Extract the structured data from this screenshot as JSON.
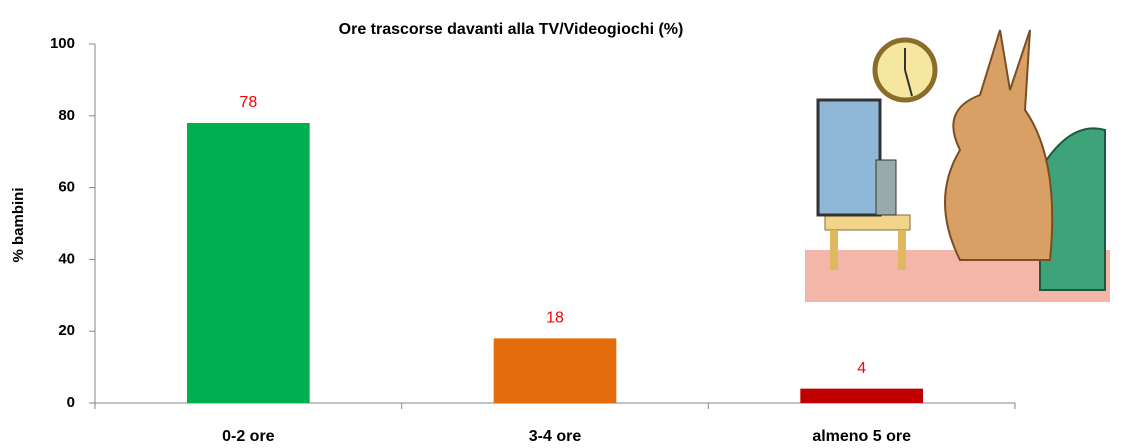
{
  "chart_data": {
    "type": "bar",
    "title": "Ore trascorse davanti alla TV/Videogiochi (%)",
    "y_label": "% bambini",
    "categories": [
      "0-2 ore",
      "3-4 ore",
      "almeno 5 ore"
    ],
    "values": [
      78,
      18,
      4
    ],
    "colors": [
      "#00b050",
      "#e46c0a",
      "#c00000"
    ],
    "value_label_color": "#ff0000",
    "ylim": [
      0,
      100
    ],
    "yticks": [
      0,
      20,
      40,
      60,
      80,
      100
    ],
    "grid": false
  }
}
